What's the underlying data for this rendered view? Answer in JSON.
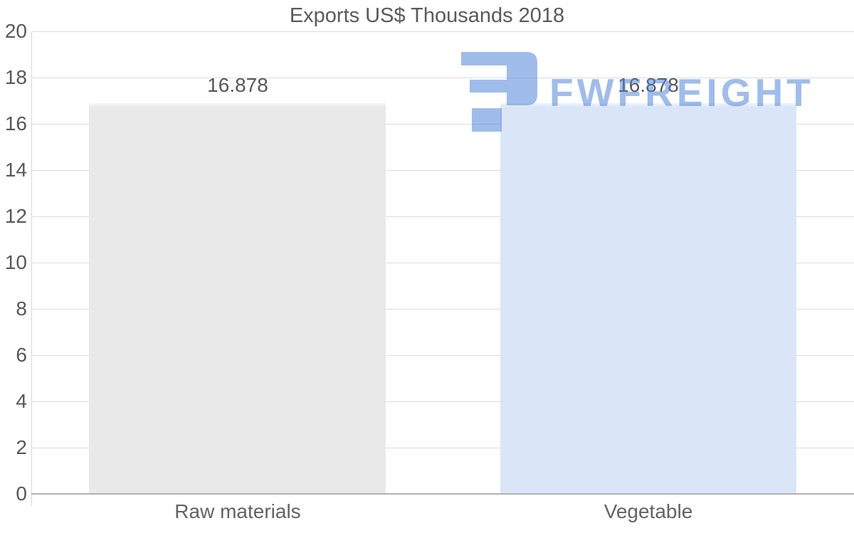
{
  "title": "Exports US$ Thousands 2018",
  "chart_data": {
    "type": "bar",
    "title": "Exports US$ Thousands 2018",
    "categories": [
      "Raw materials",
      "Vegetable"
    ],
    "values": [
      16.878,
      16.878
    ],
    "value_labels": [
      "16.878",
      "16.878"
    ],
    "series_colors": [
      "#e9e9e9",
      "#dae6f8"
    ],
    "xlabel": "",
    "ylabel": "",
    "ylim": [
      0,
      20
    ],
    "y_ticks": [
      0,
      2,
      4,
      6,
      8,
      10,
      12,
      14,
      16,
      18,
      20
    ],
    "grid": "horizontal",
    "legend": "none"
  },
  "watermark": {
    "text": "FWFREIGHT",
    "icon": "fwfreight-logo-icon",
    "color": "#4a7fd8"
  },
  "colors": {
    "background": "#ffffff",
    "title_text": "#5a5a5a",
    "axis_text": "#58585a",
    "category_text": "#636363",
    "gridline": "#dcdcdc",
    "axis_line": "#d7d7d7",
    "baseline": "#b1b1b1"
  }
}
